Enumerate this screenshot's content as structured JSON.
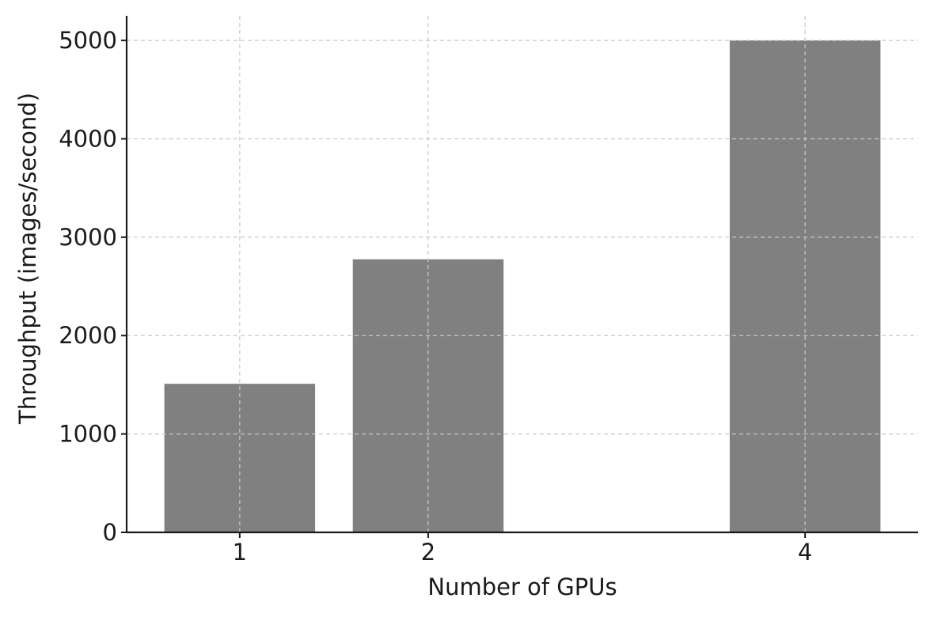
{
  "chart_data": {
    "type": "bar",
    "x": [
      1,
      2,
      4
    ],
    "categories": [
      "1",
      "2",
      "4"
    ],
    "values": [
      1510,
      2775,
      5000
    ],
    "xlabel": "Number of GPUs",
    "ylabel": "Throughput (images/second)",
    "ylim": [
      0,
      5250
    ],
    "xlim": [
      0.4,
      4.6
    ],
    "yticks": [
      0,
      1000,
      2000,
      3000,
      4000,
      5000
    ],
    "yticklabels": [
      "0",
      "1000",
      "2000",
      "3000",
      "4000",
      "5000"
    ],
    "bar_width": 0.8,
    "grid": true,
    "bar_color": "#808080"
  }
}
